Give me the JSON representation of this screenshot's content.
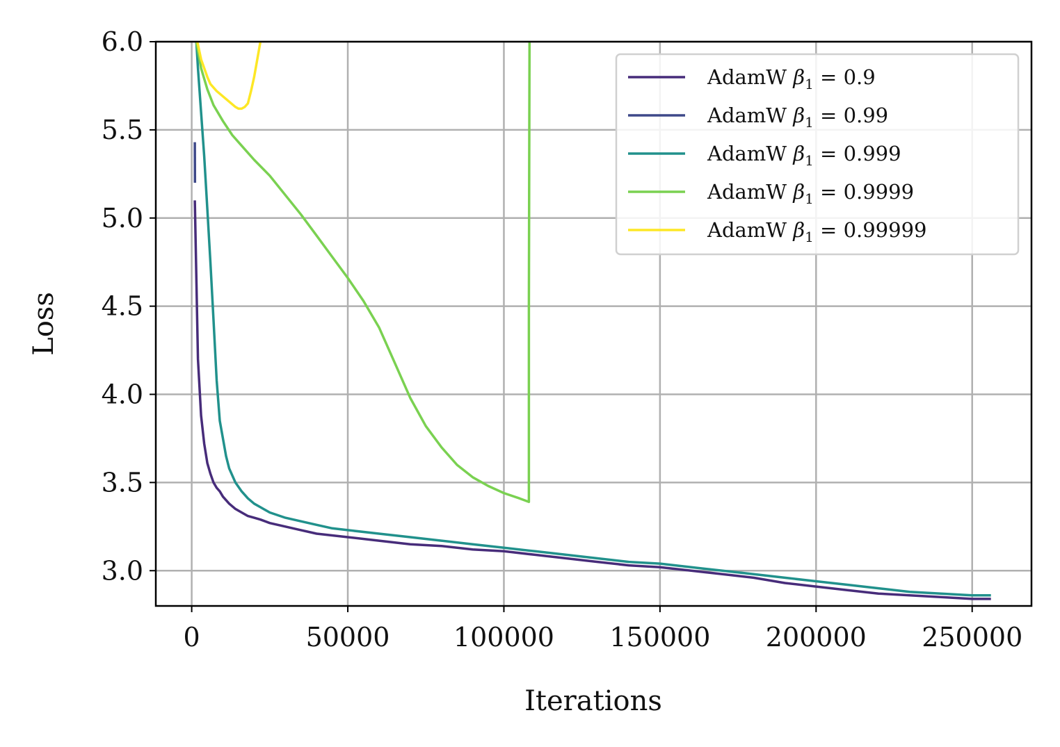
{
  "chart_data": {
    "type": "line",
    "title": "",
    "xlabel": "Iterations",
    "ylabel": "Loss",
    "xlim": [
      -11500,
      269000
    ],
    "ylim": [
      2.8,
      6.0
    ],
    "xticks": [
      0,
      50000,
      100000,
      150000,
      200000,
      250000
    ],
    "xtick_labels": [
      "0",
      "50000",
      "100000",
      "150000",
      "200000",
      "250000"
    ],
    "yticks": [
      3.0,
      3.5,
      4.0,
      4.5,
      5.0,
      5.5,
      6.0
    ],
    "ytick_labels": [
      "3.0",
      "3.5",
      "4.0",
      "4.5",
      "5.0",
      "5.5",
      "6.0"
    ],
    "grid": true,
    "legend_position": "top-right",
    "series": [
      {
        "name": "AdamW β1 = 0.9",
        "color": "#472c7a",
        "x": [
          1000,
          2000,
          3000,
          4000,
          5000,
          6000,
          7000,
          8000,
          9000,
          10000,
          12000,
          14000,
          16000,
          18000,
          20000,
          22000,
          25000,
          30000,
          35000,
          40000,
          45000,
          50000,
          60000,
          70000,
          80000,
          90000,
          100000,
          110000,
          120000,
          130000,
          140000,
          150000,
          160000,
          170000,
          180000,
          190000,
          200000,
          210000,
          220000,
          230000,
          240000,
          250000,
          256000
        ],
        "y": [
          5.1,
          4.2,
          3.88,
          3.72,
          3.61,
          3.55,
          3.5,
          3.47,
          3.45,
          3.42,
          3.38,
          3.35,
          3.33,
          3.31,
          3.3,
          3.29,
          3.27,
          3.25,
          3.23,
          3.21,
          3.2,
          3.19,
          3.17,
          3.15,
          3.14,
          3.12,
          3.11,
          3.09,
          3.07,
          3.05,
          3.03,
          3.02,
          3.0,
          2.98,
          2.96,
          2.93,
          2.91,
          2.89,
          2.87,
          2.86,
          2.85,
          2.84,
          2.84
        ]
      },
      {
        "name": "AdamW β1 = 0.99",
        "color": "#3e4989",
        "x": [
          1000,
          1050
        ],
        "y": [
          5.43,
          5.2
        ]
      },
      {
        "name": "AdamW β1 = 0.999",
        "color": "#21918c",
        "x": [
          1500,
          2000,
          3000,
          4000,
          5000,
          6000,
          7000,
          8000,
          9000,
          10000,
          11000,
          12000,
          14000,
          16000,
          18000,
          20000,
          22000,
          25000,
          30000,
          35000,
          40000,
          45000,
          50000,
          60000,
          70000,
          80000,
          90000,
          100000,
          110000,
          120000,
          130000,
          140000,
          150000,
          160000,
          170000,
          180000,
          190000,
          200000,
          210000,
          220000,
          230000,
          240000,
          250000,
          256000
        ],
        "y": [
          6.0,
          5.85,
          5.6,
          5.35,
          5.05,
          4.75,
          4.42,
          4.08,
          3.85,
          3.75,
          3.65,
          3.58,
          3.5,
          3.45,
          3.41,
          3.38,
          3.36,
          3.33,
          3.3,
          3.28,
          3.26,
          3.24,
          3.23,
          3.21,
          3.19,
          3.17,
          3.15,
          3.13,
          3.11,
          3.09,
          3.07,
          3.05,
          3.04,
          3.02,
          3.0,
          2.98,
          2.96,
          2.94,
          2.92,
          2.9,
          2.88,
          2.87,
          2.86,
          2.86
        ]
      },
      {
        "name": "AdamW β1 = 0.9999",
        "color": "#7ad151",
        "x": [
          1500,
          3000,
          5000,
          7000,
          10000,
          13000,
          16000,
          20000,
          25000,
          30000,
          35000,
          40000,
          45000,
          50000,
          55000,
          60000,
          65000,
          70000,
          75000,
          80000,
          85000,
          90000,
          95000,
          100000,
          105000,
          108000,
          108000,
          108200
        ],
        "y": [
          6.0,
          5.85,
          5.73,
          5.64,
          5.55,
          5.47,
          5.41,
          5.33,
          5.24,
          5.13,
          5.02,
          4.9,
          4.78,
          4.66,
          4.53,
          4.38,
          4.18,
          3.98,
          3.82,
          3.7,
          3.6,
          3.53,
          3.48,
          3.44,
          3.41,
          3.39,
          4.5,
          6.0
        ]
      },
      {
        "name": "AdamW β1 = 0.99999",
        "color": "#fde725",
        "x": [
          1800,
          3000,
          4000,
          5000,
          6000,
          8000,
          10000,
          12000,
          14000,
          15000,
          16000,
          17000,
          18000,
          19000,
          20000,
          21000,
          22000
        ],
        "y": [
          6.0,
          5.9,
          5.85,
          5.8,
          5.76,
          5.72,
          5.69,
          5.66,
          5.63,
          5.62,
          5.62,
          5.63,
          5.65,
          5.72,
          5.8,
          5.9,
          6.0
        ]
      }
    ],
    "legend_labels": [
      "AdamW",
      "AdamW",
      "AdamW",
      "AdamW",
      "AdamW"
    ],
    "legend_values": [
      "0.9",
      "0.99",
      "0.999",
      "0.9999",
      "0.99999"
    ]
  }
}
